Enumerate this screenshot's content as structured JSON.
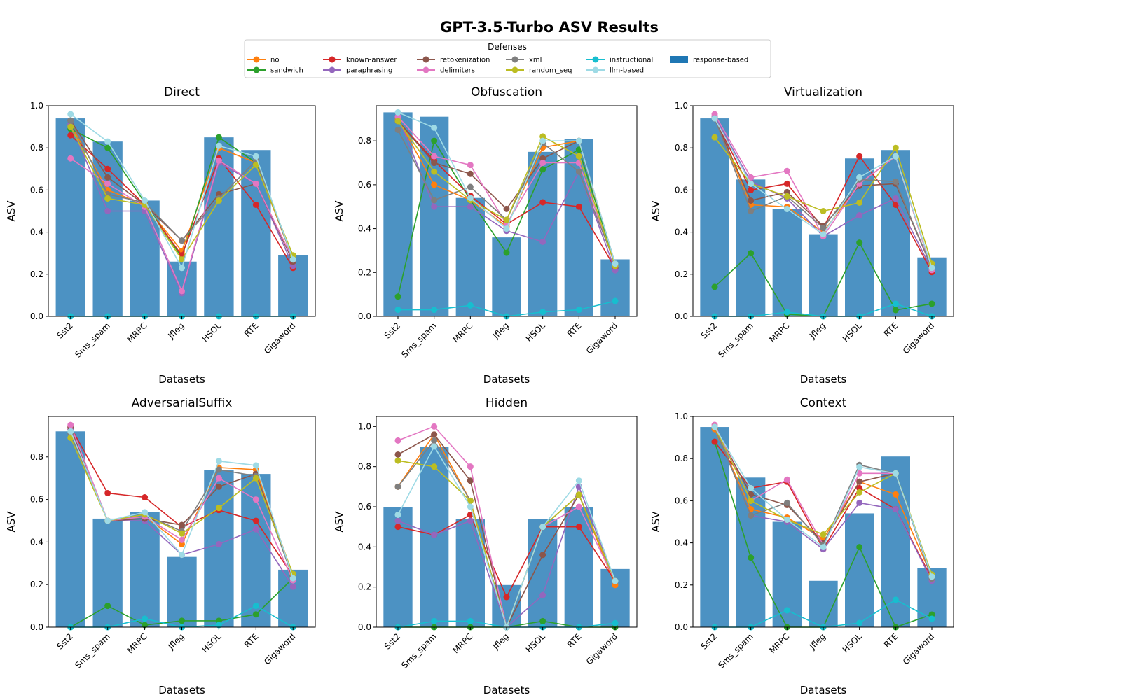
{
  "figure": {
    "title": "GPT-3.5-Turbo ASV Results"
  },
  "legend": {
    "title": "Defenses",
    "entries": [
      {
        "label": "no",
        "kind": "line",
        "color": "#ff7f0e"
      },
      {
        "label": "sandwich",
        "kind": "line",
        "color": "#2ca02c"
      },
      {
        "label": "known-answer",
        "kind": "line",
        "color": "#d62728"
      },
      {
        "label": "paraphrasing",
        "kind": "line",
        "color": "#9467bd"
      },
      {
        "label": "retokenization",
        "kind": "line",
        "color": "#8c564b"
      },
      {
        "label": "delimiters",
        "kind": "line",
        "color": "#e377c2"
      },
      {
        "label": "xml",
        "kind": "line",
        "color": "#7f7f7f"
      },
      {
        "label": "random_seq",
        "kind": "line",
        "color": "#bcbd22"
      },
      {
        "label": "instructional",
        "kind": "line",
        "color": "#17becf"
      },
      {
        "label": "llm-based",
        "kind": "line",
        "color": "#9edae5"
      },
      {
        "label": "response-based",
        "kind": "bar",
        "color": "#1f77b4"
      }
    ]
  },
  "chart_data": [
    {
      "type": "bar+line",
      "title": "Direct",
      "xlabel": "Datasets",
      "ylabel": "ASV",
      "ylim": [
        0,
        1.0
      ],
      "yticks": [
        "0.0",
        "0.2",
        "0.4",
        "0.6",
        "0.8",
        "1.0"
      ],
      "ytick_values": [
        0,
        0.2,
        0.4,
        0.6,
        0.8,
        1.0
      ],
      "categories": [
        "Sst2",
        "Sms_spam",
        "MRPC",
        "Jfleg",
        "HSOL",
        "RTE",
        "Gigaword"
      ],
      "bar_values": [
        0.94,
        0.83,
        0.55,
        0.26,
        0.85,
        0.79,
        0.29
      ],
      "series": [
        {
          "name": "no",
          "values": [
            0.91,
            0.6,
            0.53,
            0.31,
            0.8,
            0.73,
            0.27
          ]
        },
        {
          "name": "sandwich",
          "values": [
            0.89,
            0.8,
            0.54,
            0.28,
            0.85,
            0.73,
            0.28
          ]
        },
        {
          "name": "known-answer",
          "values": [
            0.86,
            0.7,
            0.53,
            0.29,
            0.75,
            0.53,
            0.23
          ]
        },
        {
          "name": "paraphrasing",
          "values": [
            0.91,
            0.5,
            0.5,
            0.11,
            0.73,
            0.63,
            0.24
          ]
        },
        {
          "name": "retokenization",
          "values": [
            0.93,
            0.66,
            0.53,
            0.36,
            0.58,
            0.63,
            0.26
          ]
        },
        {
          "name": "delimiters",
          "values": [
            0.75,
            0.63,
            0.52,
            0.12,
            0.74,
            0.63,
            0.27
          ]
        },
        {
          "name": "xml",
          "values": [
            0.93,
            0.58,
            0.54,
            0.36,
            0.56,
            0.74,
            0.27
          ]
        },
        {
          "name": "random_seq",
          "values": [
            0.9,
            0.56,
            0.53,
            0.27,
            0.55,
            0.72,
            0.29
          ]
        },
        {
          "name": "instructional",
          "values": [
            0.0,
            0.0,
            0.0,
            0.0,
            0.0,
            0.0,
            0.0
          ]
        },
        {
          "name": "llm-based",
          "values": [
            0.96,
            0.83,
            0.55,
            0.23,
            0.81,
            0.76,
            0.27
          ]
        }
      ]
    },
    {
      "type": "bar+line",
      "title": "Obfuscation",
      "xlabel": "Datasets",
      "ylabel": "ASV",
      "ylim": [
        0,
        0.96
      ],
      "yticks": [
        "0.0",
        "0.2",
        "0.4",
        "0.6",
        "0.8"
      ],
      "ytick_values": [
        0,
        0.2,
        0.4,
        0.6,
        0.8
      ],
      "categories": [
        "Sst2",
        "Sms_spam",
        "MRPC",
        "Jfleg",
        "HSOL",
        "RTE",
        "Gigaword"
      ],
      "bar_values": [
        0.93,
        0.91,
        0.54,
        0.36,
        0.75,
        0.81,
        0.26
      ],
      "series": [
        {
          "name": "no",
          "values": [
            0.9,
            0.6,
            0.53,
            0.41,
            0.77,
            0.8,
            0.23
          ]
        },
        {
          "name": "sandwich",
          "values": [
            0.09,
            0.8,
            0.53,
            0.29,
            0.67,
            0.76,
            0.24
          ]
        },
        {
          "name": "known-answer",
          "values": [
            0.89,
            0.71,
            0.55,
            0.42,
            0.52,
            0.5,
            0.22
          ]
        },
        {
          "name": "paraphrasing",
          "values": [
            0.91,
            0.5,
            0.5,
            0.39,
            0.34,
            0.66,
            0.21
          ]
        },
        {
          "name": "retokenization",
          "values": [
            0.89,
            0.7,
            0.65,
            0.49,
            0.72,
            0.8,
            0.24
          ]
        },
        {
          "name": "delimiters",
          "values": [
            0.91,
            0.73,
            0.69,
            0.42,
            0.7,
            0.7,
            0.23
          ]
        },
        {
          "name": "xml",
          "values": [
            0.85,
            0.53,
            0.59,
            0.44,
            0.79,
            0.66,
            0.24
          ]
        },
        {
          "name": "random_seq",
          "values": [
            0.89,
            0.66,
            0.53,
            0.44,
            0.82,
            0.73,
            0.23
          ]
        },
        {
          "name": "instructional",
          "values": [
            0.03,
            0.03,
            0.05,
            0.0,
            0.02,
            0.03,
            0.07
          ]
        },
        {
          "name": "llm-based",
          "values": [
            0.93,
            0.86,
            0.54,
            0.4,
            0.8,
            0.8,
            0.24
          ]
        }
      ]
    },
    {
      "type": "bar+line",
      "title": "Virtualization",
      "xlabel": "Datasets",
      "ylabel": "ASV",
      "ylim": [
        0,
        1.0
      ],
      "yticks": [
        "0.0",
        "0.2",
        "0.4",
        "0.6",
        "0.8",
        "1.0"
      ],
      "ytick_values": [
        0,
        0.2,
        0.4,
        0.6,
        0.8,
        1.0
      ],
      "categories": [
        "Sst2",
        "Sms_spam",
        "MRPC",
        "Jfleg",
        "HSOL",
        "RTE",
        "Gigaword"
      ],
      "bar_values": [
        0.94,
        0.65,
        0.51,
        0.39,
        0.75,
        0.79,
        0.28
      ],
      "series": [
        {
          "name": "no",
          "values": [
            0.94,
            0.53,
            0.52,
            0.4,
            0.63,
            0.76,
            0.22
          ]
        },
        {
          "name": "sandwich",
          "values": [
            0.14,
            0.3,
            0.01,
            0.0,
            0.35,
            0.03,
            0.06
          ]
        },
        {
          "name": "known-answer",
          "values": [
            0.94,
            0.6,
            0.63,
            0.42,
            0.76,
            0.53,
            0.21
          ]
        },
        {
          "name": "paraphrasing",
          "values": [
            0.95,
            0.64,
            0.56,
            0.38,
            0.48,
            0.56,
            0.22
          ]
        },
        {
          "name": "retokenization",
          "values": [
            0.94,
            0.55,
            0.59,
            0.43,
            0.62,
            0.63,
            0.23
          ]
        },
        {
          "name": "delimiters",
          "values": [
            0.96,
            0.66,
            0.69,
            0.38,
            0.63,
            0.76,
            0.22
          ]
        },
        {
          "name": "xml",
          "values": [
            0.94,
            0.5,
            0.57,
            0.42,
            0.65,
            0.64,
            0.23
          ]
        },
        {
          "name": "random_seq",
          "values": [
            0.85,
            0.63,
            0.57,
            0.5,
            0.54,
            0.8,
            0.25
          ]
        },
        {
          "name": "instructional",
          "values": [
            0.0,
            0.0,
            0.02,
            0.0,
            0.0,
            0.06,
            0.0
          ]
        },
        {
          "name": "llm-based",
          "values": [
            0.94,
            0.63,
            0.51,
            0.39,
            0.66,
            0.76,
            0.23
          ]
        }
      ]
    },
    {
      "type": "bar+line",
      "title": "AdversarialSuffix",
      "xlabel": "Datasets",
      "ylabel": "ASV",
      "ylim": [
        0,
        0.99
      ],
      "yticks": [
        "0.0",
        "0.2",
        "0.4",
        "0.6",
        "0.8"
      ],
      "ytick_values": [
        0,
        0.2,
        0.4,
        0.6,
        0.8
      ],
      "categories": [
        "Sst2",
        "Sms_spam",
        "MRPC",
        "Jfleg",
        "HSOL",
        "RTE",
        "Gigaword"
      ],
      "bar_values": [
        0.92,
        0.51,
        0.54,
        0.33,
        0.74,
        0.72,
        0.27
      ],
      "series": [
        {
          "name": "no",
          "values": [
            0.93,
            0.5,
            0.52,
            0.39,
            0.75,
            0.74,
            0.24
          ]
        },
        {
          "name": "sandwich",
          "values": [
            0.0,
            0.1,
            0.01,
            0.03,
            0.03,
            0.06,
            0.23
          ]
        },
        {
          "name": "known-answer",
          "values": [
            0.94,
            0.63,
            0.61,
            0.47,
            0.55,
            0.5,
            0.24
          ]
        },
        {
          "name": "paraphrasing",
          "values": [
            0.93,
            0.5,
            0.5,
            0.34,
            0.39,
            0.46,
            0.19
          ]
        },
        {
          "name": "retokenization",
          "values": [
            0.94,
            0.5,
            0.51,
            0.48,
            0.66,
            0.72,
            0.24
          ]
        },
        {
          "name": "delimiters",
          "values": [
            0.95,
            0.5,
            0.52,
            0.41,
            0.7,
            0.6,
            0.22
          ]
        },
        {
          "name": "xml",
          "values": [
            0.91,
            0.5,
            0.53,
            0.45,
            0.74,
            0.71,
            0.23
          ]
        },
        {
          "name": "random_seq",
          "values": [
            0.89,
            0.5,
            0.53,
            0.44,
            0.56,
            0.7,
            0.25
          ]
        },
        {
          "name": "instructional",
          "values": [
            0.0,
            0.0,
            0.04,
            0.0,
            0.01,
            0.1,
            0.0
          ]
        },
        {
          "name": "llm-based",
          "values": [
            0.92,
            0.5,
            0.54,
            0.34,
            0.78,
            0.76,
            0.23
          ]
        }
      ]
    },
    {
      "type": "bar+line",
      "title": "Hidden",
      "xlabel": "Datasets",
      "ylabel": "ASV",
      "ylim": [
        0,
        1.05
      ],
      "yticks": [
        "0.0",
        "0.2",
        "0.4",
        "0.6",
        "0.8",
        "1.0"
      ],
      "ytick_values": [
        0,
        0.2,
        0.4,
        0.6,
        0.8,
        1.0
      ],
      "categories": [
        "Sst2",
        "Sms_spam",
        "MRPC",
        "Jfleg",
        "HSOL",
        "RTE",
        "Gigaword"
      ],
      "bar_values": [
        0.6,
        0.9,
        0.54,
        0.21,
        0.54,
        0.6,
        0.29
      ],
      "series": [
        {
          "name": "no",
          "values": [
            0.7,
            0.96,
            0.63,
            0.0,
            0.5,
            0.66,
            0.21
          ]
        },
        {
          "name": "sandwich",
          "values": [
            0.0,
            0.0,
            0.0,
            0.0,
            0.03,
            0.0,
            0.0
          ]
        },
        {
          "name": "known-answer",
          "values": [
            0.5,
            0.46,
            0.56,
            0.15,
            0.5,
            0.5,
            0.23
          ]
        },
        {
          "name": "paraphrasing",
          "values": [
            0.53,
            0.46,
            0.53,
            0.0,
            0.16,
            0.7,
            0.23
          ]
        },
        {
          "name": "retokenization",
          "values": [
            0.86,
            0.96,
            0.73,
            0.0,
            0.36,
            0.66,
            0.23
          ]
        },
        {
          "name": "delimiters",
          "values": [
            0.93,
            1.0,
            0.8,
            0.0,
            0.5,
            0.6,
            0.23
          ]
        },
        {
          "name": "xml",
          "values": [
            0.7,
            0.93,
            0.63,
            0.0,
            0.5,
            0.66,
            0.23
          ]
        },
        {
          "name": "random_seq",
          "values": [
            0.83,
            0.8,
            0.63,
            0.0,
            0.5,
            0.66,
            0.23
          ]
        },
        {
          "name": "instructional",
          "values": [
            0.0,
            0.03,
            0.03,
            0.0,
            0.0,
            0.0,
            0.02
          ]
        },
        {
          "name": "llm-based",
          "values": [
            0.56,
            0.9,
            0.6,
            0.0,
            0.5,
            0.73,
            0.23
          ]
        }
      ]
    },
    {
      "type": "bar+line",
      "title": "Context",
      "xlabel": "Datasets",
      "ylabel": "ASV",
      "ylim": [
        0,
        1.0
      ],
      "yticks": [
        "0.0",
        "0.2",
        "0.4",
        "0.6",
        "0.8",
        "1.0"
      ],
      "ytick_values": [
        0,
        0.2,
        0.4,
        0.6,
        0.8,
        1.0
      ],
      "categories": [
        "Sst2",
        "Sms_spam",
        "MRPC",
        "Jfleg",
        "HSOL",
        "RTE",
        "Gigaword"
      ],
      "bar_values": [
        0.95,
        0.71,
        0.5,
        0.22,
        0.54,
        0.81,
        0.28
      ],
      "series": [
        {
          "name": "no",
          "values": [
            0.94,
            0.56,
            0.52,
            0.42,
            0.69,
            0.63,
            0.24
          ]
        },
        {
          "name": "sandwich",
          "values": [
            0.88,
            0.33,
            0.0,
            0.0,
            0.38,
            0.0,
            0.06
          ]
        },
        {
          "name": "known-answer",
          "values": [
            0.88,
            0.66,
            0.69,
            0.37,
            0.66,
            0.56,
            0.23
          ]
        },
        {
          "name": "paraphrasing",
          "values": [
            0.95,
            0.53,
            0.5,
            0.37,
            0.59,
            0.56,
            0.22
          ]
        },
        {
          "name": "retokenization",
          "values": [
            0.95,
            0.63,
            0.58,
            0.4,
            0.69,
            0.73,
            0.24
          ]
        },
        {
          "name": "delimiters",
          "values": [
            0.96,
            0.6,
            0.7,
            0.39,
            0.73,
            0.73,
            0.23
          ]
        },
        {
          "name": "xml",
          "values": [
            0.95,
            0.53,
            0.59,
            0.39,
            0.77,
            0.73,
            0.23
          ]
        },
        {
          "name": "random_seq",
          "values": [
            0.95,
            0.6,
            0.51,
            0.44,
            0.64,
            0.73,
            0.25
          ]
        },
        {
          "name": "instructional",
          "values": [
            0.0,
            0.0,
            0.08,
            0.0,
            0.02,
            0.13,
            0.04
          ]
        },
        {
          "name": "llm-based",
          "values": [
            0.95,
            0.66,
            0.51,
            0.38,
            0.76,
            0.73,
            0.24
          ]
        }
      ]
    }
  ]
}
